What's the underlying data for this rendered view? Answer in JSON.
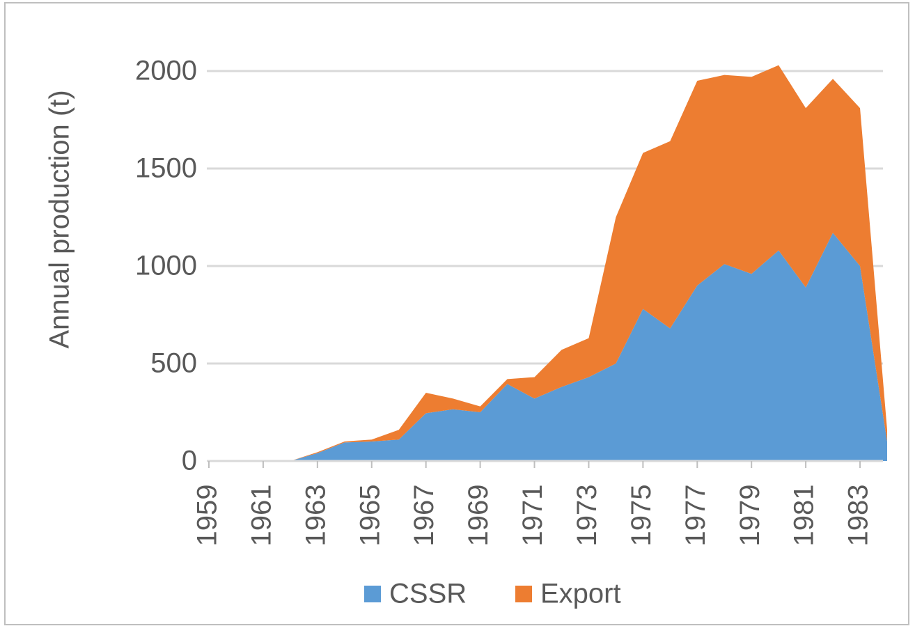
{
  "chart_data": {
    "type": "stacked_area",
    "y_label": "Annual production (t)",
    "x": [
      1959,
      1960,
      1961,
      1962,
      1963,
      1964,
      1965,
      1966,
      1967,
      1968,
      1969,
      1970,
      1971,
      1972,
      1973,
      1974,
      1975,
      1976,
      1977,
      1978,
      1979,
      1980,
      1981,
      1982,
      1983,
      1984
    ],
    "series": [
      {
        "name": "CSSR",
        "color": "#5b9bd5",
        "values": [
          0,
          0,
          0,
          0,
          40,
          95,
          100,
          110,
          245,
          265,
          250,
          395,
          320,
          380,
          430,
          500,
          780,
          680,
          900,
          1010,
          960,
          1080,
          890,
          1170,
          1000,
          100
        ]
      },
      {
        "name": "Export",
        "color": "#ed7d31",
        "values": [
          0,
          0,
          0,
          0,
          5,
          5,
          10,
          50,
          105,
          55,
          30,
          25,
          110,
          190,
          200,
          750,
          800,
          960,
          1050,
          970,
          1010,
          950,
          920,
          790,
          810,
          60
        ]
      }
    ],
    "xlim": [
      1959,
      1984
    ],
    "xticks": [
      1959,
      1961,
      1963,
      1965,
      1967,
      1969,
      1971,
      1973,
      1975,
      1977,
      1979,
      1981,
      1983
    ],
    "ylim": [
      0,
      2000
    ],
    "yticks": [
      0,
      500,
      1000,
      1500,
      2000
    ],
    "grid": true,
    "legend": "bottom"
  }
}
